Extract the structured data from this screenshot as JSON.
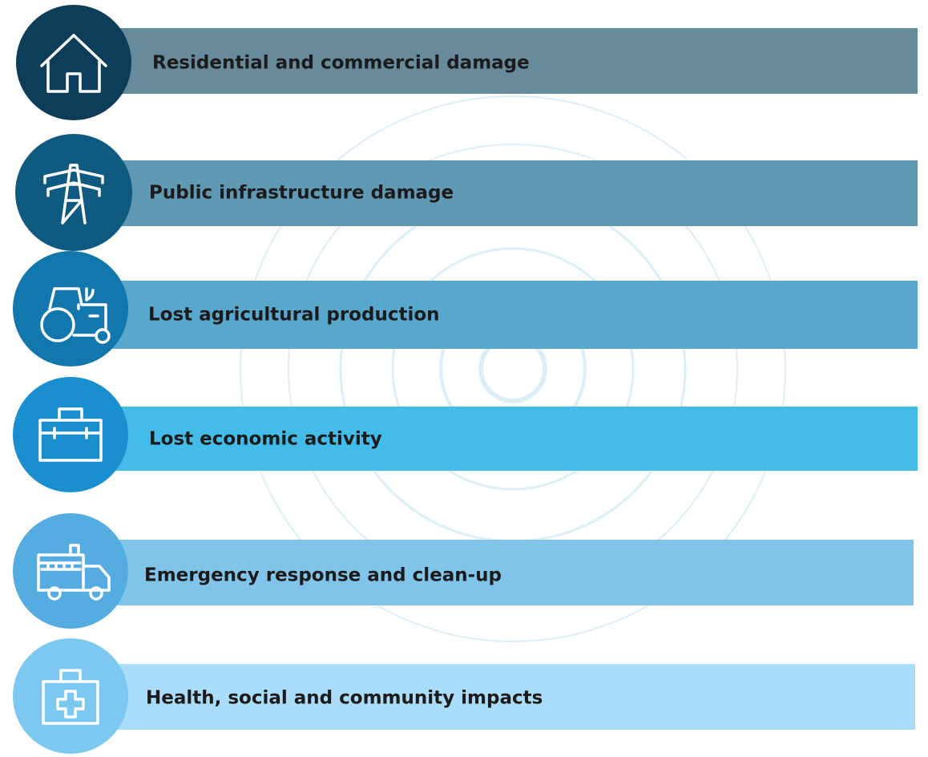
{
  "items": [
    {
      "label": "Residential and commercial damage"
    },
    {
      "label": "Public infrastructure damage"
    },
    {
      "label": "Lost agricultural production"
    },
    {
      "label": "Lost economic activity"
    },
    {
      "label": "Emergency response and clean-up"
    },
    {
      "label": "Health, social and community impacts"
    }
  ]
}
